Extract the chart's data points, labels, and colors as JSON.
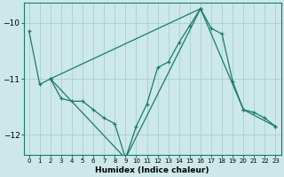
{
  "xlabel": "Humidex (Indice chaleur)",
  "background_color": "#cce8e8",
  "grid_color": "#aacfcf",
  "line_color": "#1a7a6e",
  "xlim": [
    -0.5,
    23.5
  ],
  "ylim": [
    -12.35,
    -9.65
  ],
  "yticks": [
    -12,
    -11,
    -10
  ],
  "xticks": [
    0,
    1,
    2,
    3,
    4,
    5,
    6,
    7,
    8,
    9,
    10,
    11,
    12,
    13,
    14,
    15,
    16,
    17,
    18,
    19,
    20,
    21,
    22,
    23
  ],
  "series1": [
    [
      0,
      -10.15
    ],
    [
      1,
      -11.1
    ],
    [
      2,
      -11.0
    ],
    [
      3,
      -11.35
    ],
    [
      4,
      -11.4
    ],
    [
      5,
      -11.4
    ],
    [
      6,
      -11.55
    ],
    [
      7,
      -11.7
    ],
    [
      8,
      -11.8
    ],
    [
      9,
      -12.42
    ],
    [
      10,
      -11.85
    ],
    [
      11,
      -11.45
    ],
    [
      12,
      -10.8
    ],
    [
      13,
      -10.7
    ],
    [
      14,
      -10.35
    ],
    [
      15,
      -10.05
    ],
    [
      16,
      -9.75
    ],
    [
      17,
      -10.1
    ],
    [
      18,
      -10.2
    ],
    [
      19,
      -11.05
    ],
    [
      20,
      -11.55
    ],
    [
      21,
      -11.6
    ],
    [
      22,
      -11.7
    ],
    [
      23,
      -11.85
    ]
  ],
  "series2": [
    [
      2,
      -11.0
    ],
    [
      16,
      -9.75
    ],
    [
      20,
      -11.55
    ],
    [
      23,
      -11.85
    ]
  ],
  "series3": [
    [
      2,
      -11.0
    ],
    [
      9,
      -12.42
    ],
    [
      16,
      -9.75
    ]
  ]
}
